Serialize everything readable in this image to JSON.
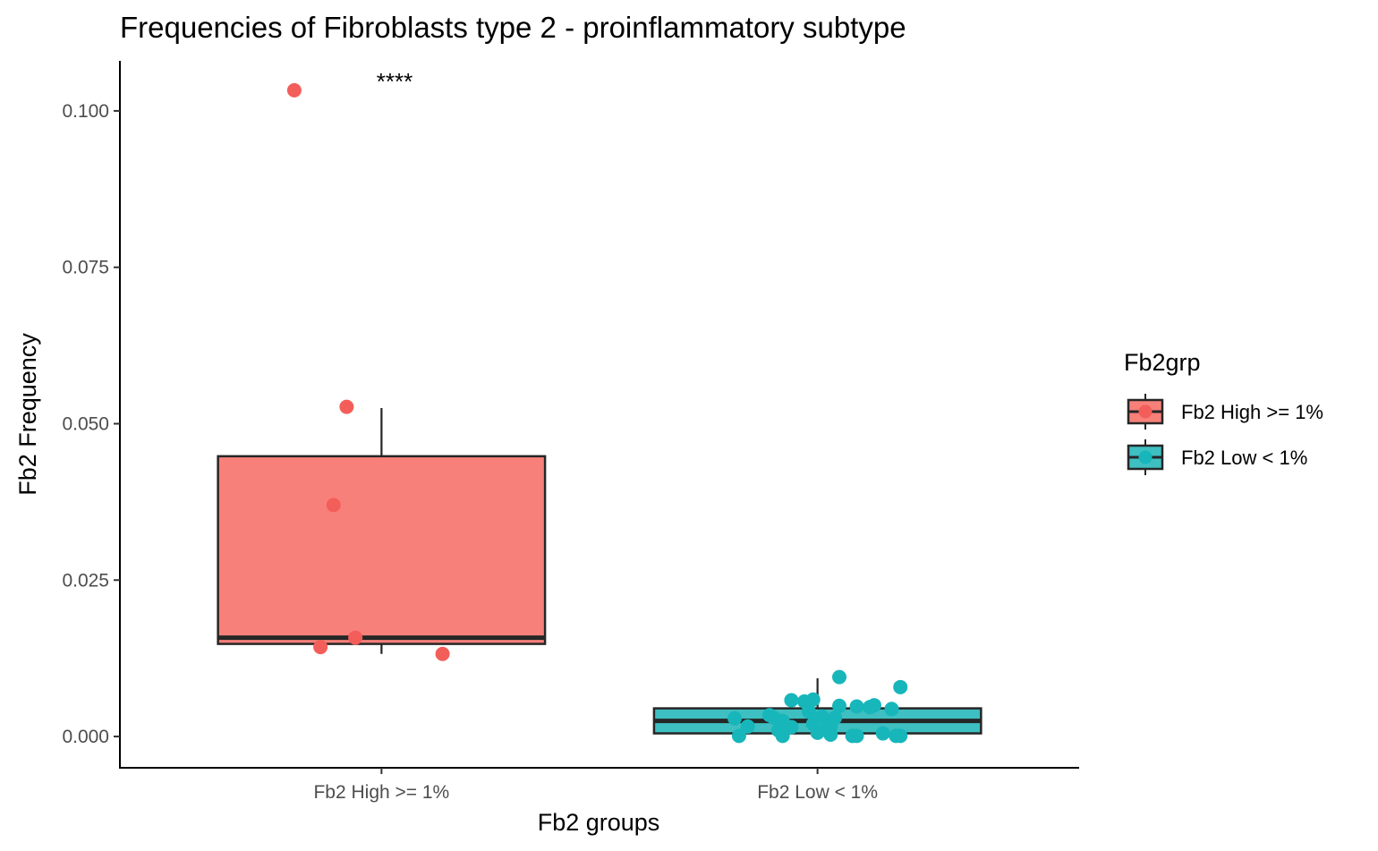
{
  "chart_data": {
    "type": "box",
    "title": "Frequencies of Fibroblasts type 2 - proinflammatory subtype",
    "xlabel": "Fb2 groups",
    "ylabel": "Fb2 Frequency",
    "categories": [
      "Fb2 High >= 1%",
      "Fb2 Low < 1%"
    ],
    "ylim": [
      -0.005,
      0.108
    ],
    "yticks": [
      0.0,
      0.025,
      0.05,
      0.075,
      0.1
    ],
    "ytick_labels": [
      "0.000",
      "0.025",
      "0.050",
      "0.075",
      "0.100"
    ],
    "grid": false,
    "annotation": "****",
    "legend": {
      "title": "Fb2grp",
      "position": "right",
      "entries": [
        "Fb2 High >= 1%",
        "Fb2 Low < 1%"
      ]
    },
    "colors": {
      "high_fill": "#F8807A",
      "high_point": "#F35E5A",
      "low_fill": "#3EBFC1",
      "low_point": "#17B6BA",
      "box_stroke": "#262626"
    },
    "series": [
      {
        "name": "Fb2 High >= 1%",
        "box": {
          "q1": 0.0148,
          "median": 0.0158,
          "q3": 0.0448,
          "whisker_low": 0.0132,
          "whisker_high": 0.0525
        },
        "points": [
          {
            "jitter": -0.2,
            "y": 0.1033
          },
          {
            "jitter": -0.08,
            "y": 0.0527
          },
          {
            "jitter": -0.11,
            "y": 0.037
          },
          {
            "jitter": -0.06,
            "y": 0.0158
          },
          {
            "jitter": -0.14,
            "y": 0.0143
          },
          {
            "jitter": 0.14,
            "y": 0.0132
          }
        ]
      },
      {
        "name": "Fb2 Low < 1%",
        "box": {
          "q1": 0.0005,
          "median": 0.0025,
          "q3": 0.0045,
          "whisker_low": 0.0,
          "whisker_high": 0.0093
        },
        "points": [
          {
            "jitter": 0.05,
            "y": 0.0095
          },
          {
            "jitter": 0.19,
            "y": 0.0079
          },
          {
            "jitter": -0.06,
            "y": 0.0058
          },
          {
            "jitter": -0.01,
            "y": 0.0059
          },
          {
            "jitter": -0.03,
            "y": 0.0056
          },
          {
            "jitter": 0.05,
            "y": 0.0049
          },
          {
            "jitter": 0.09,
            "y": 0.0048
          },
          {
            "jitter": 0.12,
            "y": 0.0047
          },
          {
            "jitter": 0.13,
            "y": 0.005
          },
          {
            "jitter": 0.17,
            "y": 0.0044
          },
          {
            "jitter": -0.02,
            "y": 0.004
          },
          {
            "jitter": -0.11,
            "y": 0.0034
          },
          {
            "jitter": -0.1,
            "y": 0.003
          },
          {
            "jitter": -0.19,
            "y": 0.0029
          },
          {
            "jitter": 0.01,
            "y": 0.0032
          },
          {
            "jitter": 0.04,
            "y": 0.003
          },
          {
            "jitter": -0.08,
            "y": 0.0025
          },
          {
            "jitter": -0.16,
            "y": 0.0016
          },
          {
            "jitter": -0.06,
            "y": 0.0015
          },
          {
            "jitter": -0.01,
            "y": 0.002
          },
          {
            "jitter": 0.02,
            "y": 0.0012
          },
          {
            "jitter": 0.03,
            "y": 0.0016
          },
          {
            "jitter": -0.09,
            "y": 0.001
          },
          {
            "jitter": 0.0,
            "y": 0.0006
          },
          {
            "jitter": 0.03,
            "y": 0.0003
          },
          {
            "jitter": -0.08,
            "y": 0.0001
          },
          {
            "jitter": -0.18,
            "y": 0.0001
          },
          {
            "jitter": 0.08,
            "y": 0.0001
          },
          {
            "jitter": 0.09,
            "y": 0.0001
          },
          {
            "jitter": 0.15,
            "y": 0.0005
          },
          {
            "jitter": 0.18,
            "y": 0.0001
          },
          {
            "jitter": 0.19,
            "y": 0.0001
          }
        ]
      }
    ]
  }
}
